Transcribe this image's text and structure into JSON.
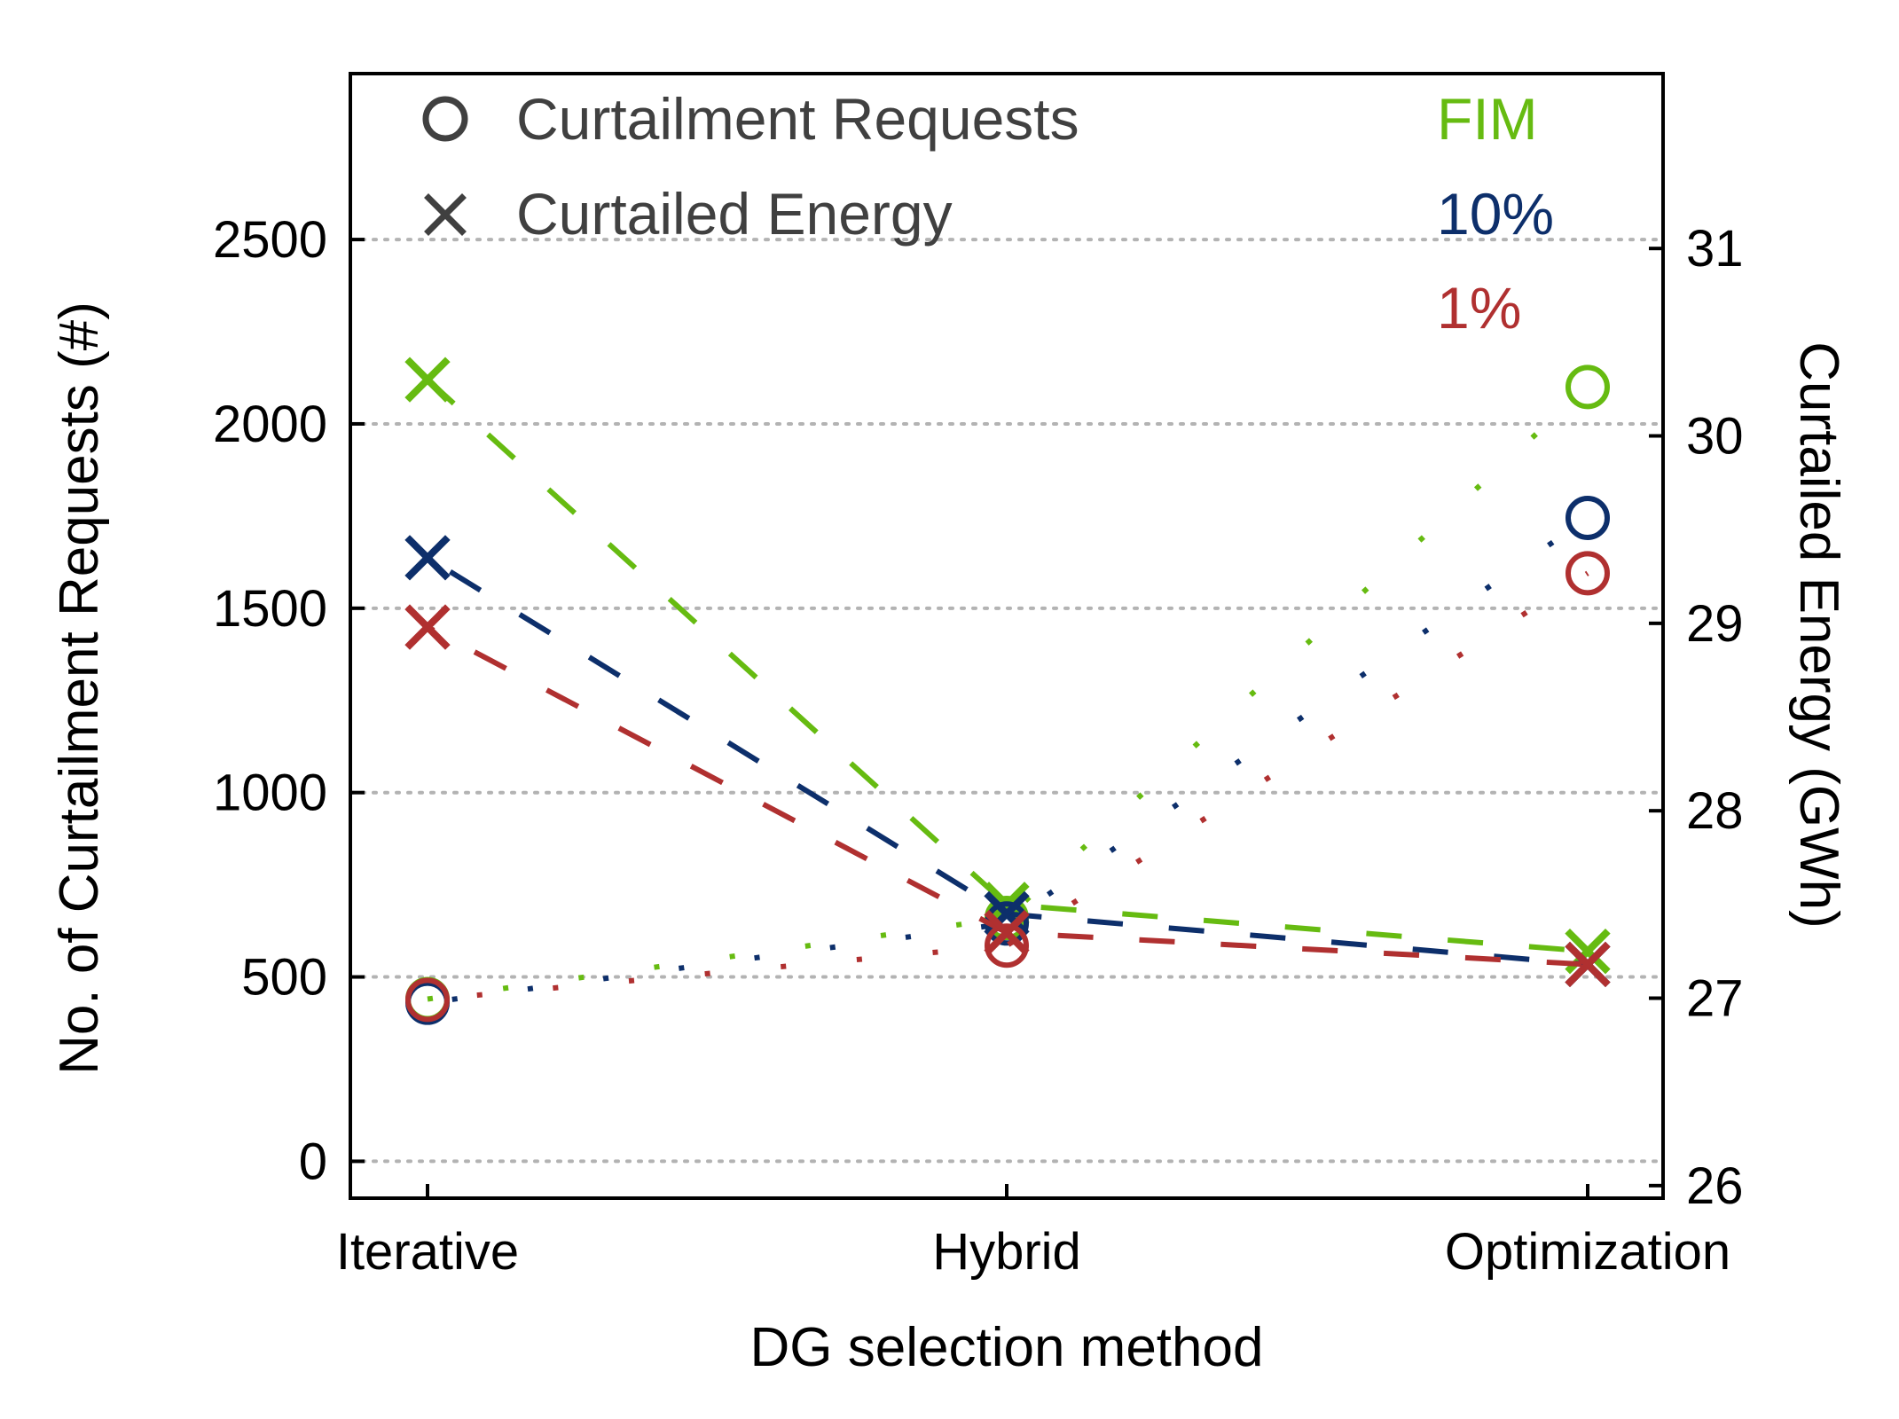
{
  "chart_data": {
    "type": "line",
    "xlabel": "DG selection method",
    "ylabel_left": "No. of Curtailment Requests (#)",
    "ylabel_right": "Curtailed Energy (GWh)",
    "categories": [
      "Iterative",
      "Hybrid",
      "Optimization"
    ],
    "ylim_left": [
      -100,
      2950
    ],
    "yticks_left": [
      0,
      500,
      1000,
      1500,
      2000,
      2500
    ],
    "ylim_right": [
      25.933,
      31.933
    ],
    "yticks_right": [
      26,
      27,
      28,
      29,
      30,
      31
    ],
    "grid": "horizontal dotted",
    "legend": {
      "placement": "top-left",
      "marker_entries": [
        {
          "marker": "circle",
          "label": "Curtailment Requests",
          "line": "dotted",
          "axis": "left"
        },
        {
          "marker": "x",
          "label": "Curtailed Energy",
          "line": "dashed",
          "axis": "right"
        }
      ],
      "color_entries_placement": "top-right"
    },
    "series": [
      {
        "name": "FIM",
        "color": "#66bb11",
        "curtailment_requests": [
          440,
          660,
          2100
        ],
        "curtailed_energy_gwh": [
          30.3,
          27.5,
          27.25
        ]
      },
      {
        "name": "10%",
        "color": "#0d2f6b",
        "curtailment_requests": [
          430,
          645,
          1745
        ],
        "curtailed_energy_gwh": [
          29.35,
          27.45,
          27.18
        ]
      },
      {
        "name": "1%",
        "color": "#b03030",
        "curtailment_requests": [
          438,
          585,
          1595
        ],
        "curtailed_energy_gwh": [
          28.98,
          27.35,
          27.18
        ]
      }
    ]
  }
}
